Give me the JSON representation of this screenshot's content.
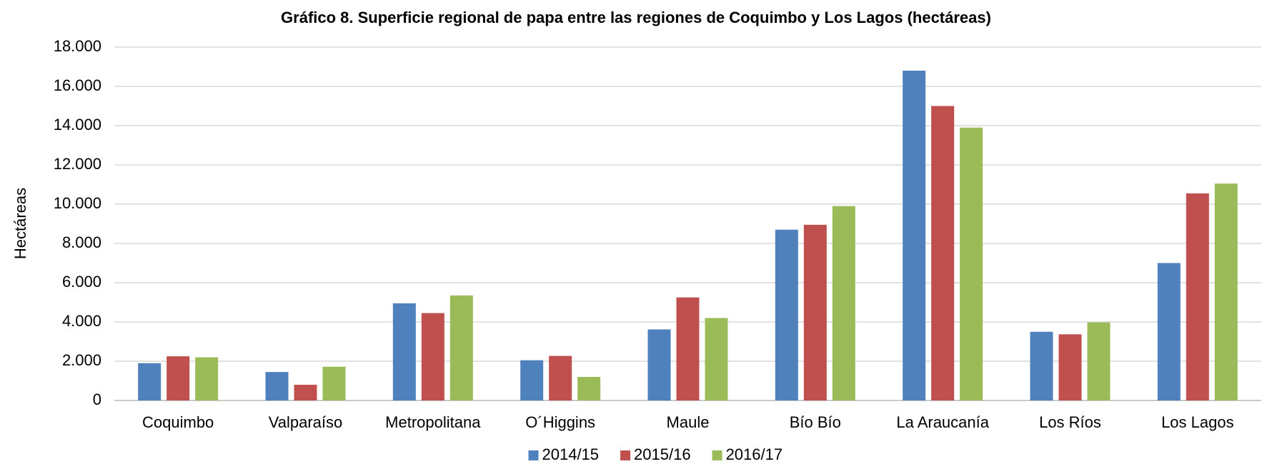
{
  "chart_data": {
    "type": "bar",
    "title": "Gráfico 8. Superficie regional de papa entre las regiones de Coquimbo y Los Lagos (hectáreas)",
    "y_label": "Hectáreas",
    "categories": [
      "Coquimbo",
      "Valparaíso",
      "Metropolitana",
      "O´Higgins",
      "Maule",
      "Bío Bío",
      "La Araucanía",
      "Los Ríos",
      "Los Lagos"
    ],
    "series": [
      {
        "name": "2014/15",
        "color": "#4f81bd",
        "values": [
          1900,
          1450,
          4950,
          2050,
          3620,
          8700,
          16800,
          3500,
          7000
        ]
      },
      {
        "name": "2015/16",
        "color": "#c0504d",
        "values": [
          2250,
          800,
          4450,
          2270,
          5250,
          8950,
          15000,
          3370,
          10550
        ]
      },
      {
        "name": "2016/17",
        "color": "#9bbb59",
        "values": [
          2200,
          1720,
          5350,
          1200,
          4200,
          9900,
          13900,
          3980,
          11050
        ]
      }
    ],
    "ylim": [
      0,
      18000
    ],
    "yticks": [
      0,
      {
        "value": 2000,
        "label": "2.000"
      },
      {
        "value": 4000,
        "label": "4.000"
      },
      {
        "value": 6000,
        "label": "6.000"
      },
      {
        "value": 8000,
        "label": "8.000"
      },
      {
        "value": 10000,
        "label": "10.000"
      },
      {
        "value": 12000,
        "label": "12.000"
      },
      {
        "value": 14000,
        "label": "14.000"
      },
      {
        "value": 16000,
        "label": "16.000"
      },
      {
        "value": 18000,
        "label": "18.000"
      }
    ],
    "grid": true,
    "legend": "bottom"
  }
}
